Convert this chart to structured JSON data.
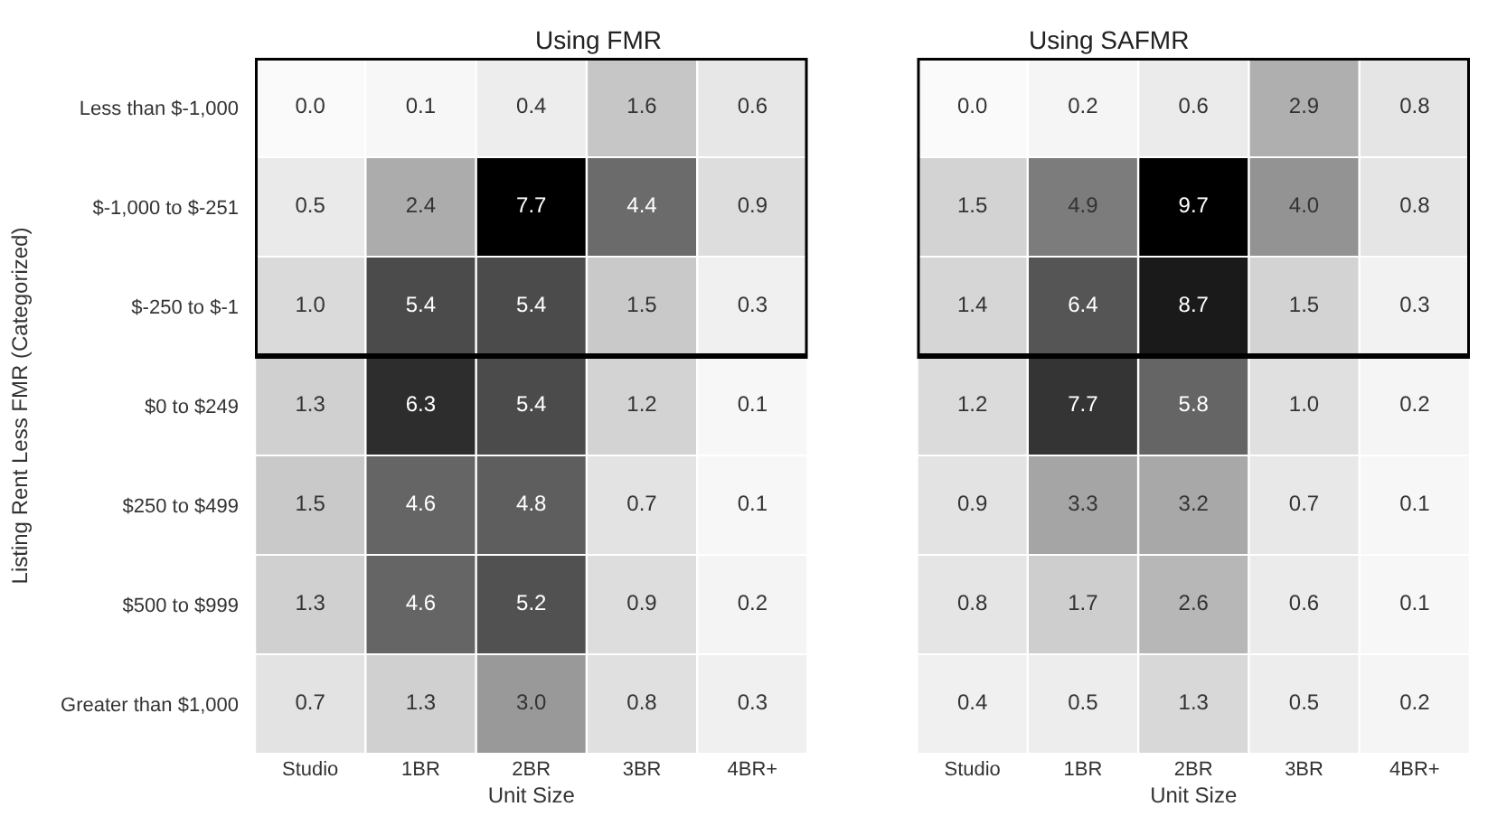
{
  "chart_data": [
    {
      "type": "heatmap",
      "title": "Using FMR",
      "xlabel": "Unit Size",
      "ylabel": "Listing Rent Less FMR (Categorized)",
      "categories": [
        "Studio",
        "1BR",
        "2BR",
        "3BR",
        "4BR+"
      ],
      "y_categories": [
        "Less than $-1,000",
        "$-1,000 to $-251",
        "$-250 to $-1",
        "$0 to $249",
        "$250 to $499",
        "$500 to $999",
        "Greater than $1,000"
      ],
      "cells": [
        [
          0.0,
          0.1,
          0.4,
          1.6,
          0.6
        ],
        [
          0.5,
          2.4,
          7.7,
          4.4,
          0.9
        ],
        [
          1.0,
          5.4,
          5.4,
          1.5,
          0.3
        ],
        [
          1.3,
          6.3,
          5.4,
          1.2,
          0.1
        ],
        [
          1.5,
          4.6,
          4.8,
          0.7,
          0.1
        ],
        [
          1.3,
          4.6,
          5.2,
          0.9,
          0.2
        ],
        [
          0.7,
          1.3,
          3.0,
          0.8,
          0.3
        ]
      ],
      "cell_labels": [
        [
          "0.0",
          "0.1",
          "0.4",
          "1.6",
          "0.6"
        ],
        [
          "0.5",
          "2.4",
          "7.7",
          "4.4",
          "0.9"
        ],
        [
          "1.0",
          "5.4",
          "5.4",
          "1.5",
          "0.3"
        ],
        [
          "1.3",
          "6.3",
          "5.4",
          "1.2",
          "0.1"
        ],
        [
          "1.5",
          "4.6",
          "4.8",
          "0.7",
          "0.1"
        ],
        [
          "1.3",
          "4.6",
          "5.2",
          "0.9",
          "0.2"
        ],
        [
          "0.7",
          "1.3",
          "3.0",
          "0.8",
          "0.3"
        ]
      ]
    },
    {
      "type": "heatmap",
      "title": "Using SAFMR",
      "xlabel": "Unit Size",
      "tick_labels": "x",
      "categories": [
        "Studio",
        "1BR",
        "2BR",
        "3BR",
        "4BR+"
      ],
      "y_categories": [
        null,
        null,
        null,
        null,
        null,
        null,
        null
      ],
      "cells": [
        [
          0.0,
          0.2,
          0.6,
          2.9,
          0.8
        ],
        [
          1.5,
          4.9,
          9.7,
          4.0,
          0.8
        ],
        [
          1.4,
          6.4,
          8.7,
          1.5,
          0.3
        ],
        [
          1.2,
          7.7,
          5.8,
          1.0,
          0.2
        ],
        [
          0.9,
          3.3,
          3.2,
          0.7,
          0.1
        ],
        [
          0.8,
          1.7,
          2.6,
          0.6,
          0.1
        ],
        [
          0.4,
          0.5,
          1.3,
          0.5,
          0.2
        ]
      ],
      "cell_labels": [
        [
          "0.0",
          "0.2",
          "0.6",
          "2.9",
          "0.8"
        ],
        [
          "1.5",
          "4.9",
          "9.7",
          "4.0",
          "0.8"
        ],
        [
          "1.4",
          "6.4",
          "8.7",
          "1.5",
          "0.3"
        ],
        [
          "1.2",
          "7.7",
          "5.8",
          "1.0",
          "0.2"
        ],
        [
          "0.9",
          "3.3",
          "3.2",
          "0.7",
          "0.1"
        ],
        [
          "0.8",
          "1.7",
          "2.6",
          "0.6",
          "0.1"
        ],
        [
          "0.4",
          "0.5",
          "1.3",
          "0.5",
          "0.2"
        ]
      ]
    }
  ]
}
